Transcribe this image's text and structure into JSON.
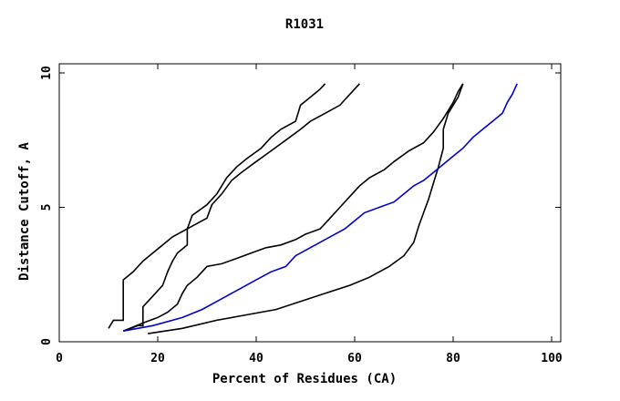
{
  "chart_data": {
    "type": "line",
    "title": "R1031",
    "xlabel": "Percent of Residues (CA)",
    "ylabel": "Distance Cutoff, A",
    "xlim": [
      0,
      100
    ],
    "ylim": [
      0,
      10
    ],
    "x_ticks": [
      "0",
      "20",
      "40",
      "60",
      "80",
      "100"
    ],
    "x_tick_values": [
      0,
      20,
      40,
      60,
      80,
      100
    ],
    "y_ticks": [
      "0",
      "5",
      "10"
    ],
    "y_tick_values": [
      0,
      5,
      10
    ],
    "grid": false,
    "colors": {
      "background_models": "#ff8c00",
      "highlight_black": "#000000",
      "highlight_blue": "#0000cc"
    },
    "series": [
      {
        "color": "#000000",
        "points": [
          [
            10,
            0.5
          ],
          [
            11,
            0.8
          ],
          [
            13,
            0.8
          ],
          [
            13,
            2.3
          ],
          [
            15,
            2.6
          ],
          [
            17,
            3.0
          ],
          [
            19,
            3.3
          ],
          [
            21,
            3.6
          ],
          [
            23,
            3.9
          ],
          [
            26,
            4.2
          ],
          [
            27,
            4.7
          ],
          [
            30,
            5.1
          ],
          [
            32,
            5.5
          ],
          [
            34,
            6.1
          ],
          [
            36,
            6.5
          ],
          [
            38,
            6.8
          ],
          [
            41,
            7.2
          ],
          [
            43,
            7.6
          ],
          [
            45,
            7.9
          ],
          [
            48,
            8.2
          ],
          [
            49,
            8.8
          ],
          [
            51,
            9.1
          ],
          [
            53,
            9.4
          ],
          [
            54,
            9.6
          ]
        ]
      },
      {
        "color": "#000000",
        "points": [
          [
            13,
            0.4
          ],
          [
            16,
            0.6
          ],
          [
            17,
            0.6
          ],
          [
            17,
            1.3
          ],
          [
            19,
            1.7
          ],
          [
            21,
            2.1
          ],
          [
            22,
            2.6
          ],
          [
            23,
            3.0
          ],
          [
            24,
            3.3
          ],
          [
            26,
            3.6
          ],
          [
            26,
            4.2
          ],
          [
            28,
            4.4
          ],
          [
            30,
            4.6
          ],
          [
            31,
            5.1
          ],
          [
            33,
            5.5
          ],
          [
            35,
            6.0
          ],
          [
            37,
            6.3
          ],
          [
            40,
            6.7
          ],
          [
            43,
            7.1
          ],
          [
            46,
            7.5
          ],
          [
            49,
            7.9
          ],
          [
            51,
            8.2
          ],
          [
            54,
            8.5
          ],
          [
            57,
            8.8
          ],
          [
            59,
            9.2
          ],
          [
            61,
            9.6
          ]
        ]
      },
      {
        "color": "#000000",
        "points": [
          [
            13,
            0.4
          ],
          [
            17,
            0.7
          ],
          [
            20,
            0.9
          ],
          [
            22,
            1.1
          ],
          [
            24,
            1.4
          ],
          [
            25,
            1.8
          ],
          [
            26,
            2.1
          ],
          [
            28,
            2.4
          ],
          [
            30,
            2.8
          ],
          [
            33,
            2.9
          ],
          [
            36,
            3.1
          ],
          [
            39,
            3.3
          ],
          [
            42,
            3.5
          ],
          [
            45,
            3.6
          ],
          [
            48,
            3.8
          ],
          [
            50,
            4.0
          ],
          [
            53,
            4.2
          ],
          [
            55,
            4.6
          ],
          [
            57,
            5.0
          ],
          [
            59,
            5.4
          ],
          [
            61,
            5.8
          ],
          [
            63,
            6.1
          ],
          [
            66,
            6.4
          ],
          [
            68,
            6.7
          ],
          [
            71,
            7.1
          ],
          [
            74,
            7.4
          ],
          [
            76,
            7.8
          ],
          [
            78,
            8.3
          ],
          [
            80,
            8.9
          ],
          [
            81,
            9.3
          ],
          [
            82,
            9.6
          ]
        ]
      },
      {
        "color": "#000000",
        "points": [
          [
            18,
            0.3
          ],
          [
            25,
            0.5
          ],
          [
            32,
            0.8
          ],
          [
            38,
            1.0
          ],
          [
            44,
            1.2
          ],
          [
            49,
            1.5
          ],
          [
            54,
            1.8
          ],
          [
            59,
            2.1
          ],
          [
            63,
            2.4
          ],
          [
            67,
            2.8
          ],
          [
            70,
            3.2
          ],
          [
            72,
            3.7
          ],
          [
            73,
            4.3
          ],
          [
            74,
            4.8
          ],
          [
            75,
            5.3
          ],
          [
            76,
            5.9
          ],
          [
            77,
            6.5
          ],
          [
            78,
            7.2
          ],
          [
            78,
            7.9
          ],
          [
            79,
            8.5
          ],
          [
            81,
            9.1
          ],
          [
            82,
            9.6
          ]
        ]
      },
      {
        "color": "#0000cc",
        "points": [
          [
            13,
            0.4
          ],
          [
            19,
            0.6
          ],
          [
            25,
            0.9
          ],
          [
            29,
            1.2
          ],
          [
            33,
            1.6
          ],
          [
            36,
            1.9
          ],
          [
            40,
            2.3
          ],
          [
            43,
            2.6
          ],
          [
            46,
            2.8
          ],
          [
            48,
            3.2
          ],
          [
            50,
            3.4
          ],
          [
            52,
            3.6
          ],
          [
            55,
            3.9
          ],
          [
            58,
            4.2
          ],
          [
            60,
            4.5
          ],
          [
            62,
            4.8
          ],
          [
            65,
            5.0
          ],
          [
            68,
            5.2
          ],
          [
            70,
            5.5
          ],
          [
            72,
            5.8
          ],
          [
            74,
            6.0
          ],
          [
            76,
            6.3
          ],
          [
            78,
            6.6
          ],
          [
            80,
            6.9
          ],
          [
            82,
            7.2
          ],
          [
            84,
            7.6
          ],
          [
            86,
            7.9
          ],
          [
            88,
            8.2
          ],
          [
            90,
            8.5
          ],
          [
            91,
            8.9
          ],
          [
            92,
            9.2
          ],
          [
            93,
            9.6
          ]
        ]
      }
    ]
  }
}
